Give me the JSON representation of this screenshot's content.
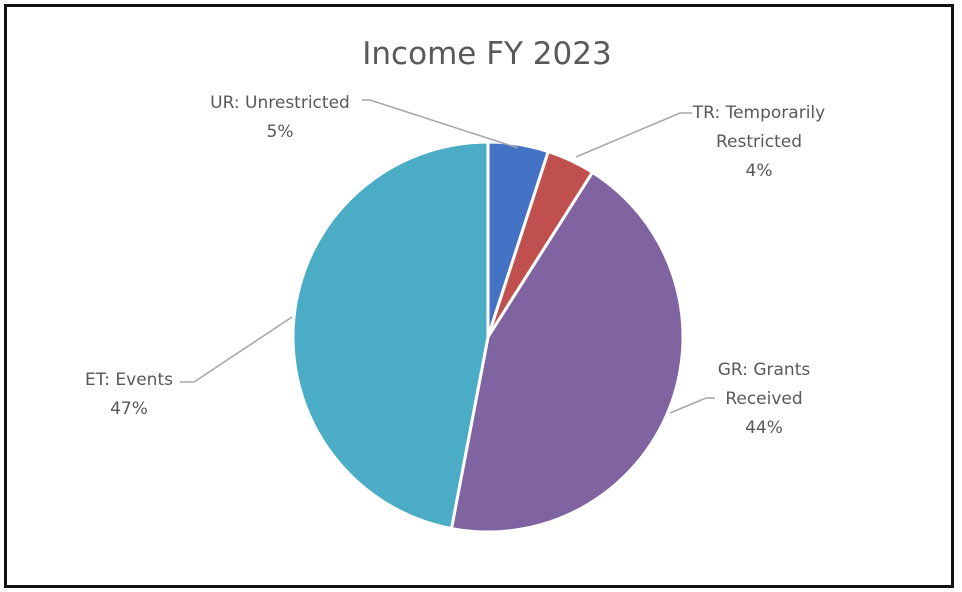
{
  "chart_data": {
    "type": "pie",
    "title": "Income FY 2023",
    "slices": [
      {
        "label_lines": [
          "UR: Unrestricted"
        ],
        "value": 5,
        "pct": "5%",
        "color": "#4472C4"
      },
      {
        "label_lines": [
          "TR: Temporarily",
          "Restricted"
        ],
        "value": 4,
        "pct": "4%",
        "color": "#C0504D"
      },
      {
        "label_lines": [
          "GR: Grants",
          "Received"
        ],
        "value": 44,
        "pct": "44%",
        "color": "#8064A2"
      },
      {
        "label_lines": [
          "ET: Events"
        ],
        "value": 47,
        "pct": "47%",
        "color": "#4BACC6"
      }
    ],
    "legend": "none",
    "data_labels": "outside-with-leader-lines"
  }
}
